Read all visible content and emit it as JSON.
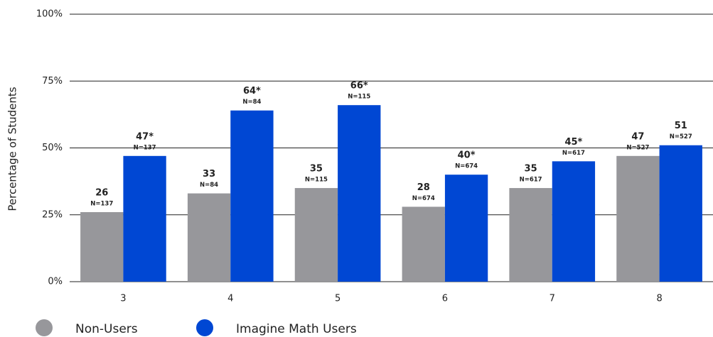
{
  "chart_data": {
    "type": "bar",
    "y_axis_label": "Percentage of Students",
    "categories": [
      "3",
      "4",
      "5",
      "6",
      "7",
      "8"
    ],
    "series": [
      {
        "name": "Non-Users",
        "color": "#97979b",
        "values": [
          26,
          33,
          35,
          28,
          35,
          47
        ],
        "n_labels": [
          "N=137",
          "N=84",
          "N=115",
          "N=674",
          "N=617",
          "N=527"
        ]
      },
      {
        "name": "Imagine Math Users",
        "color": "#0047d3",
        "values": [
          47,
          64,
          66,
          40,
          45,
          51
        ],
        "value_labels": [
          "47*",
          "64*",
          "66*",
          "40*",
          "45*",
          "51"
        ],
        "n_labels": [
          "N=137",
          "N=84",
          "N=115",
          "N=674",
          "N=617",
          "N=527"
        ]
      }
    ],
    "ylim": [
      0,
      100
    ],
    "yticks": [
      {
        "value": 0,
        "label": "0%"
      },
      {
        "value": 25,
        "label": "25%"
      },
      {
        "value": 50,
        "label": "50%"
      },
      {
        "value": 75,
        "label": "75%"
      },
      {
        "value": 100,
        "label": "100%"
      }
    ],
    "grid": true,
    "legend": "bottom"
  }
}
